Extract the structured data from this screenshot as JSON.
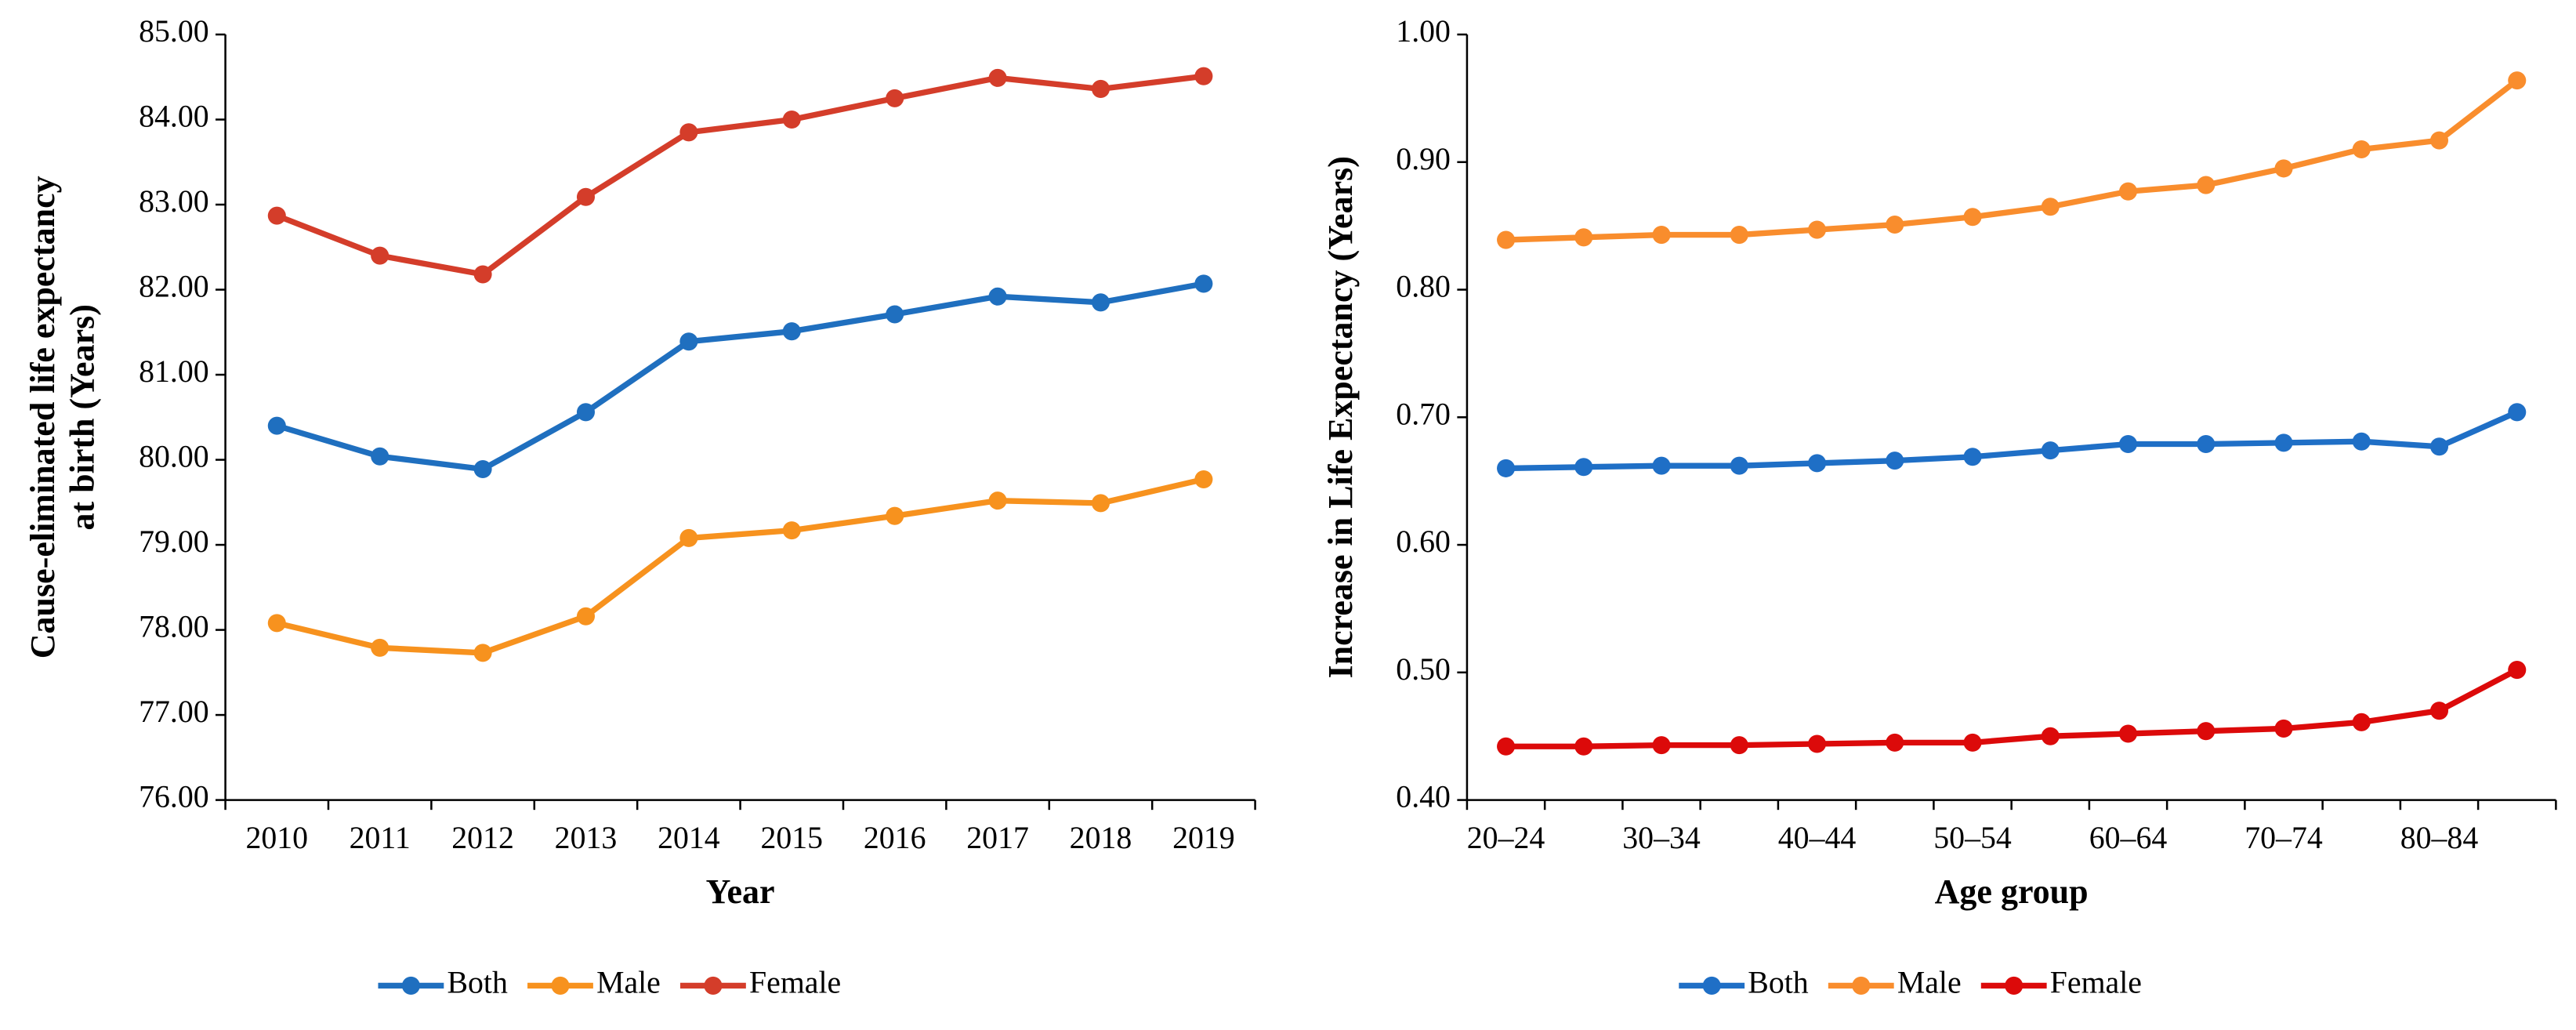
{
  "chart_data": [
    {
      "type": "line",
      "categories": [
        "2010",
        "2011",
        "2012",
        "2013",
        "2014",
        "2015",
        "2016",
        "2017",
        "2018",
        "2019"
      ],
      "series": [
        {
          "name": "Both",
          "color": "#1f6fbf",
          "values": [
            80.4,
            80.04,
            79.89,
            80.56,
            81.39,
            81.51,
            81.71,
            81.92,
            81.85,
            82.07
          ]
        },
        {
          "name": "Male",
          "color": "#f7921e",
          "values": [
            78.08,
            77.79,
            77.73,
            78.16,
            79.08,
            79.17,
            79.34,
            79.52,
            79.49,
            79.77
          ]
        },
        {
          "name": "Female",
          "color": "#d43d2a",
          "values": [
            82.87,
            82.4,
            82.18,
            83.09,
            83.85,
            84.0,
            84.25,
            84.49,
            84.36,
            84.51
          ]
        }
      ],
      "ylim": [
        76,
        85
      ],
      "yticks": [
        {
          "value": 76,
          "label": "76.00"
        },
        {
          "value": 77,
          "label": "77.00"
        },
        {
          "value": 78,
          "label": "78.00"
        },
        {
          "value": 79,
          "label": "79.00"
        },
        {
          "value": 80,
          "label": "80.00"
        },
        {
          "value": 81,
          "label": "81.00"
        },
        {
          "value": 82,
          "label": "82.00"
        },
        {
          "value": 83,
          "label": "83.00"
        },
        {
          "value": 84,
          "label": "84.00"
        },
        {
          "value": 85,
          "label": "85.00"
        }
      ],
      "x_label": "Year",
      "y_label": [
        "Cause-eliminated life expectancy",
        "at birth (Years)"
      ],
      "legend": "bottom"
    },
    {
      "type": "line",
      "categories": [
        "20–24",
        null,
        "30–34",
        null,
        "40–44",
        null,
        "50–54",
        null,
        "60–64",
        null,
        "70–74",
        null,
        "80–84",
        null
      ],
      "series": [
        {
          "name": "Both",
          "color": "#1f6fc6",
          "values": [
            0.66,
            0.661,
            0.662,
            0.662,
            0.664,
            0.666,
            0.669,
            0.674,
            0.679,
            0.679,
            0.68,
            0.681,
            0.677,
            0.704
          ]
        },
        {
          "name": "Male",
          "color": "#f98d2d",
          "values": [
            0.839,
            0.841,
            0.843,
            0.843,
            0.847,
            0.851,
            0.857,
            0.865,
            0.877,
            0.882,
            0.895,
            0.91,
            0.917,
            0.964
          ]
        },
        {
          "name": "Female",
          "color": "#dc0a0a",
          "values": [
            0.442,
            0.442,
            0.443,
            0.443,
            0.444,
            0.445,
            0.445,
            0.45,
            0.452,
            0.454,
            0.456,
            0.461,
            0.47,
            0.502
          ]
        }
      ],
      "ylim": [
        0.4,
        1.0
      ],
      "yticks": [
        {
          "value": 0.4,
          "label": "0.40"
        },
        {
          "value": 0.5,
          "label": "0.50"
        },
        {
          "value": 0.6,
          "label": "0.60"
        },
        {
          "value": 0.7,
          "label": "0.70"
        },
        {
          "value": 0.8,
          "label": "0.80"
        },
        {
          "value": 0.9,
          "label": "0.90"
        },
        {
          "value": 1.0,
          "label": "1.00"
        }
      ],
      "x_label": "Age group",
      "y_label": [
        "Increase in Life Expectancy (Years)"
      ],
      "legend": "bottom"
    }
  ]
}
